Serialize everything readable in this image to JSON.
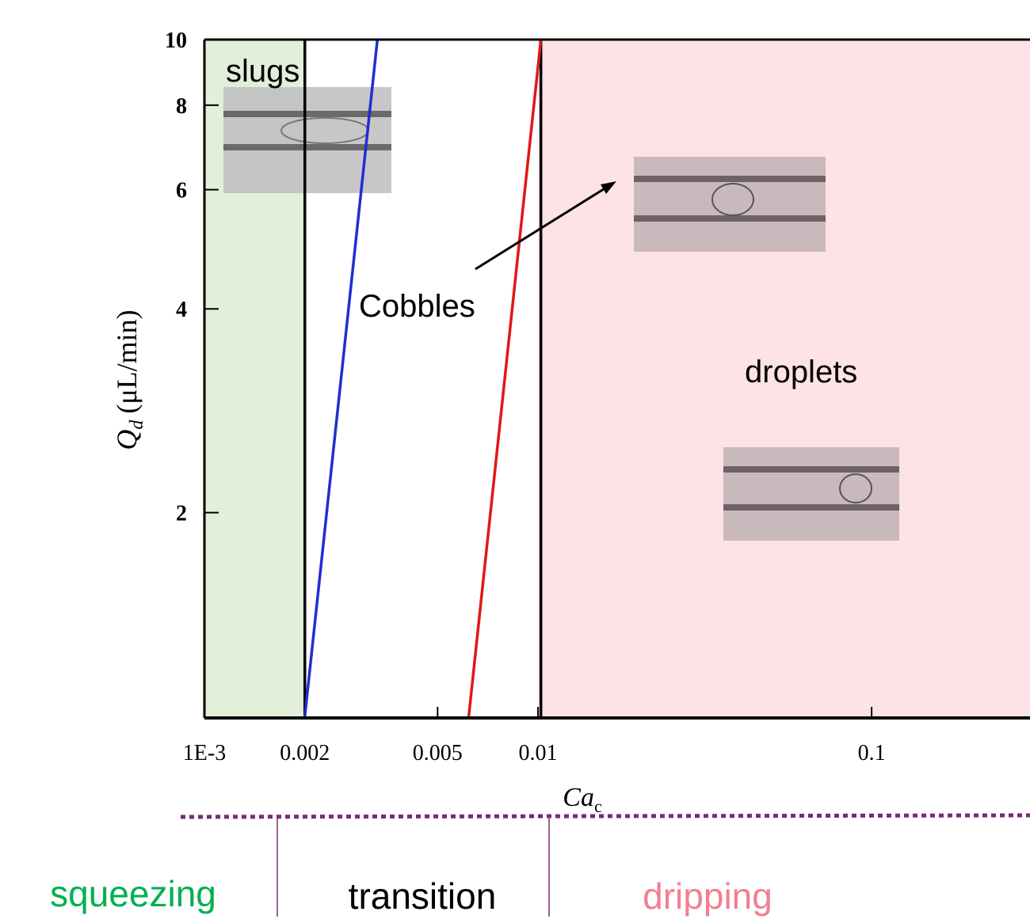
{
  "chart_data": {
    "type": "line",
    "xlabel": "Ca",
    "xlabel_sub": "c",
    "ylabel": "Q",
    "ylabel_sub": "d",
    "ylabel_unit": "(μL/min)",
    "xscale": "log",
    "yscale": "log",
    "xlim": [
      0.001,
      0.3
    ],
    "ylim": [
      1,
      10
    ],
    "xticks": [
      {
        "value": 0.001,
        "label": "1E-3"
      },
      0.002,
      0.005,
      0.01,
      0.1
    ],
    "yticks": [
      2,
      4,
      6,
      8,
      10
    ],
    "regions": [
      {
        "x0": 0.001,
        "x1": 0.002,
        "color": "#e2efd9"
      },
      {
        "x0": 0.01,
        "x1": 0.3,
        "color": "#fde2e6"
      }
    ],
    "series": [
      {
        "color": "#000000",
        "x": [
          0.002,
          0.002
        ],
        "values": [
          1,
          10
        ]
      },
      {
        "color": "#000000",
        "x": [
          0.0102,
          0.0102
        ],
        "values": [
          1,
          10
        ]
      },
      {
        "color": "#1f2fd0",
        "x": [
          0.002,
          0.0033
        ],
        "values": [
          1,
          10
        ]
      },
      {
        "color": "#e01818",
        "x": [
          0.0062,
          0.0102
        ],
        "values": [
          1,
          10
        ]
      }
    ],
    "annotations": [
      "slugs",
      "Cobbles",
      "droplets"
    ],
    "regimes": [
      {
        "label": "squeezing",
        "color": "#00b050"
      },
      {
        "label": "transition",
        "color": "#000000"
      },
      {
        "label": "dripping",
        "color": "#f08090"
      }
    ]
  }
}
